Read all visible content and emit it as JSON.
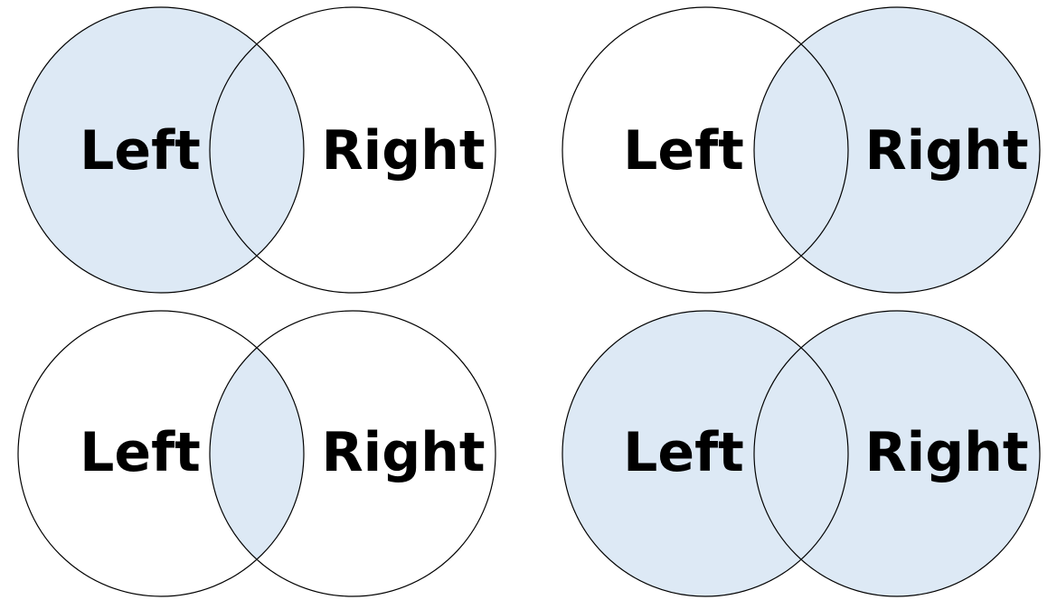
{
  "colors": {
    "highlight": "#dde9f5",
    "outline": "#000000",
    "background": "#ffffff"
  },
  "diagrams": [
    {
      "left_label": "Left",
      "right_label": "Right",
      "shade": "left"
    },
    {
      "left_label": "Left",
      "right_label": "Right",
      "shade": "right"
    },
    {
      "left_label": "Left",
      "right_label": "Right",
      "shade": "intersection"
    },
    {
      "left_label": "Left",
      "right_label": "Right",
      "shade": "union"
    }
  ]
}
